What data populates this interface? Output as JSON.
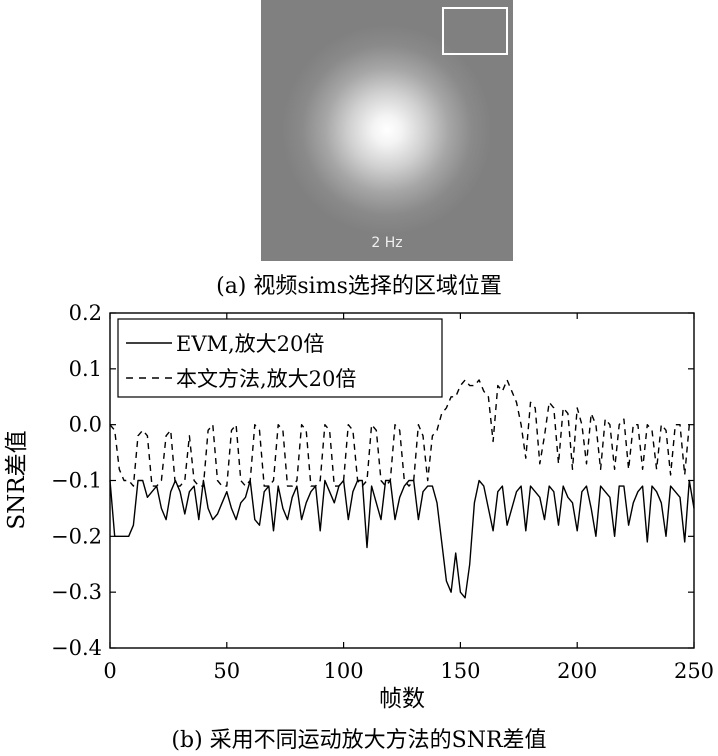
{
  "panel_a": {
    "image_label": "2 Hz",
    "caption": "(a) 视频sims选择的区域位置"
  },
  "panel_b": {
    "caption": "(b) 采用不同运动放大方法的SNR差值"
  },
  "chart_data": {
    "type": "line",
    "xlabel": "帧数",
    "ylabel": "SNR差值",
    "xlim": [
      0,
      250
    ],
    "ylim": [
      -0.4,
      0.2
    ],
    "xticks": [
      0,
      50,
      100,
      150,
      200,
      250
    ],
    "yticks": [
      0.2,
      0.1,
      0.0,
      -0.1,
      -0.2,
      -0.3,
      -0.4
    ],
    "ytick_labels": [
      "0.2",
      "0.1",
      "0.0",
      "−0.1",
      "−0.2",
      "−0.3",
      "−0.4"
    ],
    "grid": false,
    "legend_position": "top-left",
    "series": [
      {
        "name": "EVM,放大20倍",
        "style": "solid",
        "color": "#000000",
        "x": [
          0,
          2,
          4,
          6,
          8,
          10,
          12,
          14,
          16,
          18,
          20,
          22,
          24,
          26,
          28,
          30,
          32,
          34,
          36,
          38,
          40,
          42,
          44,
          46,
          48,
          50,
          52,
          54,
          56,
          58,
          60,
          62,
          64,
          66,
          68,
          70,
          72,
          74,
          76,
          78,
          80,
          82,
          84,
          86,
          88,
          90,
          92,
          94,
          96,
          98,
          100,
          102,
          104,
          106,
          108,
          110,
          112,
          114,
          116,
          118,
          120,
          122,
          124,
          126,
          128,
          130,
          132,
          134,
          136,
          138,
          140,
          142,
          144,
          146,
          148,
          150,
          152,
          154,
          156,
          158,
          160,
          162,
          164,
          166,
          168,
          170,
          172,
          174,
          176,
          178,
          180,
          182,
          184,
          186,
          188,
          190,
          192,
          194,
          196,
          198,
          200,
          202,
          204,
          206,
          208,
          210,
          212,
          214,
          216,
          218,
          220,
          222,
          224,
          226,
          228,
          230,
          232,
          234,
          236,
          238,
          240,
          242,
          244,
          246,
          248,
          250
        ],
        "values": [
          -0.1,
          -0.2,
          -0.2,
          -0.2,
          -0.2,
          -0.18,
          -0.1,
          -0.1,
          -0.13,
          -0.12,
          -0.11,
          -0.15,
          -0.17,
          -0.12,
          -0.1,
          -0.12,
          -0.16,
          -0.12,
          -0.11,
          -0.17,
          -0.1,
          -0.15,
          -0.17,
          -0.16,
          -0.14,
          -0.12,
          -0.15,
          -0.17,
          -0.14,
          -0.13,
          -0.1,
          -0.17,
          -0.18,
          -0.12,
          -0.11,
          -0.19,
          -0.11,
          -0.15,
          -0.17,
          -0.13,
          -0.11,
          -0.17,
          -0.14,
          -0.12,
          -0.11,
          -0.19,
          -0.1,
          -0.12,
          -0.14,
          -0.11,
          -0.1,
          -0.17,
          -0.12,
          -0.1,
          -0.1,
          -0.22,
          -0.11,
          -0.14,
          -0.17,
          -0.1,
          -0.1,
          -0.17,
          -0.13,
          -0.11,
          -0.1,
          -0.1,
          -0.17,
          -0.12,
          -0.11,
          -0.11,
          -0.14,
          -0.21,
          -0.28,
          -0.3,
          -0.23,
          -0.3,
          -0.31,
          -0.25,
          -0.14,
          -0.1,
          -0.11,
          -0.15,
          -0.19,
          -0.12,
          -0.11,
          -0.18,
          -0.15,
          -0.12,
          -0.11,
          -0.19,
          -0.11,
          -0.12,
          -0.13,
          -0.17,
          -0.11,
          -0.12,
          -0.18,
          -0.11,
          -0.13,
          -0.14,
          -0.19,
          -0.12,
          -0.11,
          -0.15,
          -0.2,
          -0.11,
          -0.12,
          -0.13,
          -0.2,
          -0.11,
          -0.11,
          -0.18,
          -0.14,
          -0.12,
          -0.11,
          -0.21,
          -0.11,
          -0.12,
          -0.14,
          -0.2,
          -0.11,
          -0.12,
          -0.13,
          -0.21,
          -0.1,
          -0.15
        ]
      },
      {
        "name": "本文方法,放大20倍",
        "style": "dashed",
        "color": "#000000",
        "x": [
          0,
          2,
          4,
          6,
          8,
          10,
          12,
          14,
          16,
          18,
          20,
          22,
          24,
          26,
          28,
          30,
          32,
          34,
          36,
          38,
          40,
          42,
          44,
          46,
          48,
          50,
          52,
          54,
          56,
          58,
          60,
          62,
          64,
          66,
          68,
          70,
          72,
          74,
          76,
          78,
          80,
          82,
          84,
          86,
          88,
          90,
          92,
          94,
          96,
          98,
          100,
          102,
          104,
          106,
          108,
          110,
          112,
          114,
          116,
          118,
          120,
          122,
          124,
          126,
          128,
          130,
          132,
          134,
          136,
          138,
          140,
          142,
          144,
          146,
          148,
          150,
          152,
          154,
          156,
          158,
          160,
          162,
          164,
          166,
          168,
          170,
          172,
          174,
          176,
          178,
          180,
          182,
          184,
          186,
          188,
          190,
          192,
          194,
          196,
          198,
          200,
          202,
          204,
          206,
          208,
          210,
          212,
          214,
          216,
          218,
          220,
          222,
          224,
          226,
          228,
          230,
          232,
          234,
          236,
          238,
          240,
          242,
          244,
          246,
          248,
          250
        ],
        "values": [
          0.0,
          -0.01,
          -0.08,
          -0.1,
          -0.1,
          -0.11,
          -0.02,
          -0.01,
          -0.02,
          -0.11,
          -0.11,
          -0.1,
          -0.02,
          -0.01,
          -0.11,
          -0.11,
          -0.1,
          -0.02,
          -0.1,
          -0.11,
          -0.11,
          -0.01,
          0.0,
          -0.1,
          -0.11,
          -0.11,
          -0.01,
          0.0,
          -0.1,
          -0.11,
          -0.1,
          0.0,
          -0.01,
          -0.11,
          -0.11,
          -0.1,
          0.0,
          -0.01,
          -0.11,
          -0.11,
          -0.1,
          0.0,
          -0.01,
          -0.11,
          -0.11,
          -0.1,
          0.0,
          -0.01,
          -0.11,
          -0.11,
          -0.1,
          0.0,
          -0.01,
          -0.1,
          -0.11,
          -0.1,
          0.0,
          -0.01,
          -0.1,
          -0.11,
          -0.1,
          0.0,
          -0.01,
          -0.1,
          -0.11,
          -0.1,
          0.0,
          -0.02,
          -0.1,
          -0.02,
          -0.01,
          0.02,
          0.03,
          0.05,
          0.05,
          0.07,
          0.08,
          0.07,
          0.07,
          0.08,
          0.06,
          0.05,
          -0.03,
          0.07,
          0.06,
          0.08,
          0.06,
          0.04,
          0.0,
          -0.06,
          0.04,
          0.03,
          -0.07,
          -0.02,
          0.04,
          0.03,
          -0.07,
          0.03,
          0.02,
          -0.08,
          0.03,
          0.0,
          -0.07,
          0.02,
          0.0,
          -0.08,
          0.01,
          0.0,
          -0.08,
          0.0,
          0.01,
          -0.08,
          0.0,
          0.0,
          -0.08,
          0.0,
          -0.01,
          -0.08,
          0.0,
          -0.01,
          -0.09,
          0.0,
          0.0,
          -0.09,
          0.0,
          0.0
        ]
      }
    ]
  }
}
